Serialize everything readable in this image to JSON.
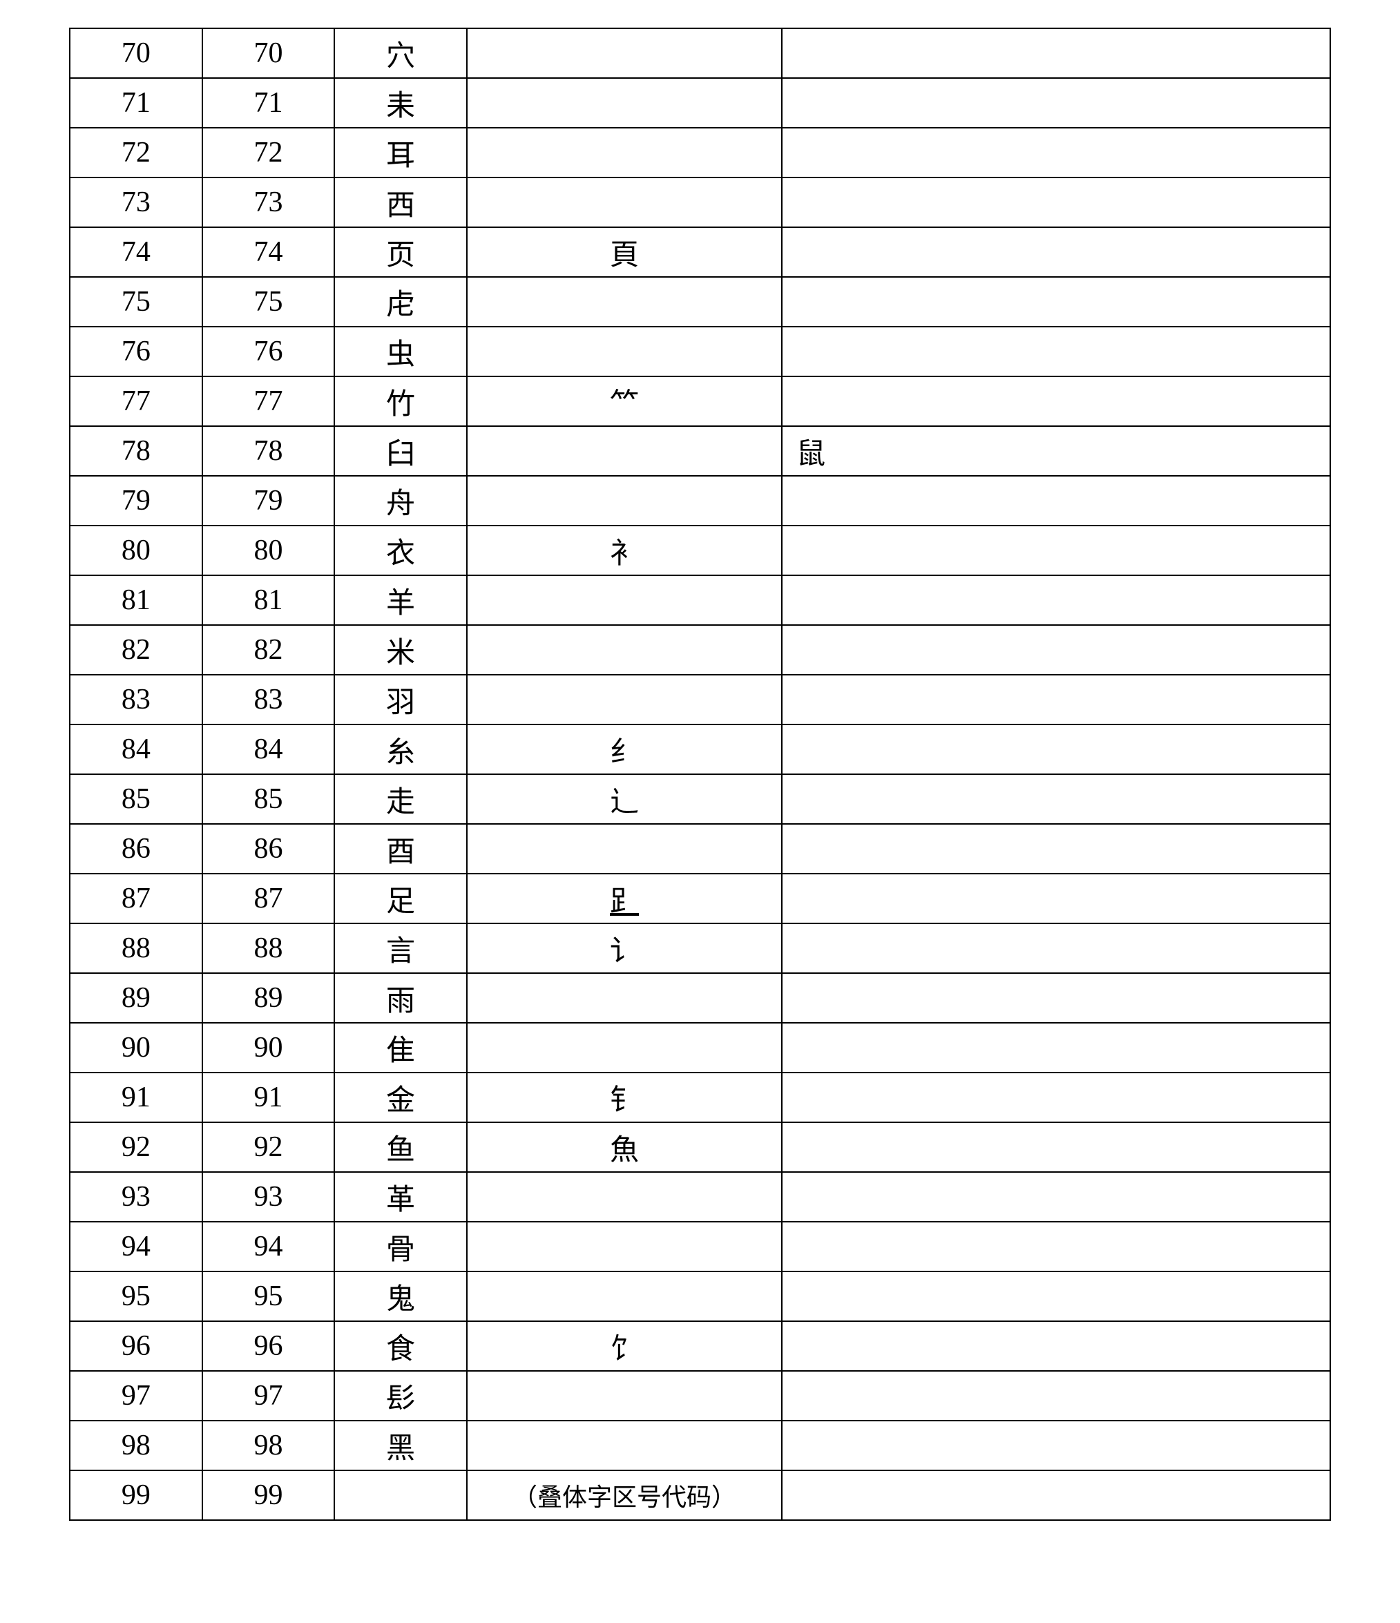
{
  "table": {
    "columns": 5,
    "border_color": "#000000",
    "background_color": "#ffffff",
    "font_family": "SimSun",
    "cell_fontsize": 42,
    "rows": [
      {
        "c1": "70",
        "c2": "70",
        "c3": "穴",
        "c4": "",
        "c5": ""
      },
      {
        "c1": "71",
        "c2": "71",
        "c3": "耒",
        "c4": "",
        "c5": ""
      },
      {
        "c1": "72",
        "c2": "72",
        "c3": "耳",
        "c4": "",
        "c5": ""
      },
      {
        "c1": "73",
        "c2": "73",
        "c3": "西",
        "c4": "",
        "c5": ""
      },
      {
        "c1": "74",
        "c2": "74",
        "c3": "页",
        "c4": "頁",
        "c5": ""
      },
      {
        "c1": "75",
        "c2": "75",
        "c3": "虍",
        "c4": "",
        "c5": ""
      },
      {
        "c1": "76",
        "c2": "76",
        "c3": "虫",
        "c4": "",
        "c5": ""
      },
      {
        "c1": "77",
        "c2": "77",
        "c3": "竹",
        "c4": "⺮",
        "c5": ""
      },
      {
        "c1": "78",
        "c2": "78",
        "c3": "臼",
        "c4": "",
        "c5": "鼠"
      },
      {
        "c1": "79",
        "c2": "79",
        "c3": "舟",
        "c4": "",
        "c5": ""
      },
      {
        "c1": "80",
        "c2": "80",
        "c3": "衣",
        "c4": "衤",
        "c5": ""
      },
      {
        "c1": "81",
        "c2": "81",
        "c3": "羊",
        "c4": "",
        "c5": ""
      },
      {
        "c1": "82",
        "c2": "82",
        "c3": "米",
        "c4": "",
        "c5": ""
      },
      {
        "c1": "83",
        "c2": "83",
        "c3": "羽",
        "c4": "",
        "c5": ""
      },
      {
        "c1": "84",
        "c2": "84",
        "c3": "糸",
        "c4": "纟",
        "c5": ""
      },
      {
        "c1": "85",
        "c2": "85",
        "c3": "走",
        "c4": "辶",
        "c5": ""
      },
      {
        "c1": "86",
        "c2": "86",
        "c3": "酉",
        "c4": "",
        "c5": ""
      },
      {
        "c1": "87",
        "c2": "87",
        "c3": "足",
        "c4": "⻊",
        "c5": "",
        "c4_underline": true
      },
      {
        "c1": "88",
        "c2": "88",
        "c3": "言",
        "c4": "讠",
        "c5": ""
      },
      {
        "c1": "89",
        "c2": "89",
        "c3": "雨",
        "c4": "",
        "c5": ""
      },
      {
        "c1": "90",
        "c2": "90",
        "c3": "隹",
        "c4": "",
        "c5": ""
      },
      {
        "c1": "91",
        "c2": "91",
        "c3": "金",
        "c4": "钅",
        "c5": ""
      },
      {
        "c1": "92",
        "c2": "92",
        "c3": "鱼",
        "c4": "魚",
        "c5": ""
      },
      {
        "c1": "93",
        "c2": "93",
        "c3": "革",
        "c4": "",
        "c5": ""
      },
      {
        "c1": "94",
        "c2": "94",
        "c3": "骨",
        "c4": "",
        "c5": ""
      },
      {
        "c1": "95",
        "c2": "95",
        "c3": "鬼",
        "c4": "",
        "c5": ""
      },
      {
        "c1": "96",
        "c2": "96",
        "c3": "食",
        "c4": "饣",
        "c5": ""
      },
      {
        "c1": "97",
        "c2": "97",
        "c3": "髟",
        "c4": "",
        "c5": ""
      },
      {
        "c1": "98",
        "c2": "98",
        "c3": "黑",
        "c4": "",
        "c5": ""
      },
      {
        "c1": "99",
        "c2": "99",
        "c3": "",
        "c4": "（叠体字区号代码）",
        "c5": "",
        "c4_small": true
      }
    ]
  }
}
